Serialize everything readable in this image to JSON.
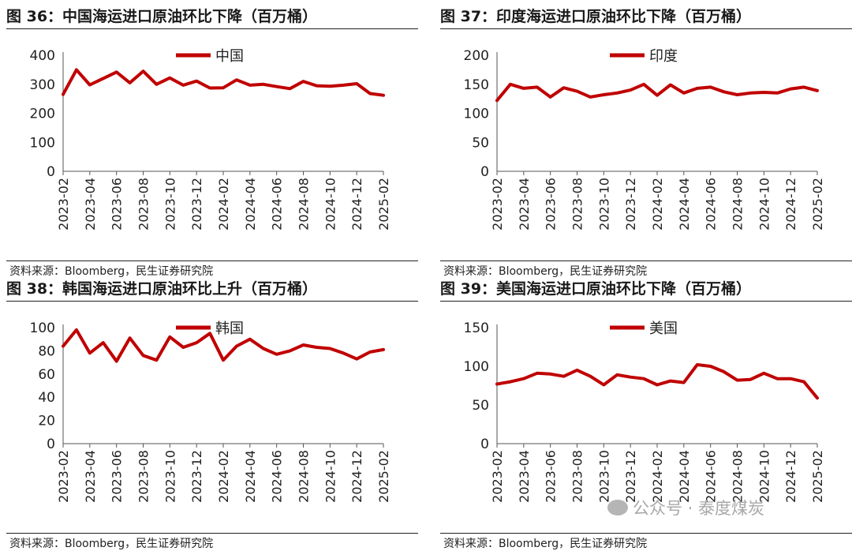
{
  "chart_data": [
    {
      "type": "line",
      "title": "图 36：中国海运进口原油环比下降（百万桶）",
      "source": "资料来源：Bloomberg，民生证券研究院",
      "categories": [
        "2023-02",
        "2023-03",
        "2023-04",
        "2023-05",
        "2023-06",
        "2023-07",
        "2023-08",
        "2023-09",
        "2023-10",
        "2023-11",
        "2023-12",
        "2024-01",
        "2024-02",
        "2024-03",
        "2024-04",
        "2024-05",
        "2024-06",
        "2024-07",
        "2024-08",
        "2024-09",
        "2024-10",
        "2024-11",
        "2024-12",
        "2025-01",
        "2025-02"
      ],
      "tick_labels": [
        "2023-02",
        "2023-04",
        "2023-06",
        "2023-08",
        "2023-10",
        "2023-12",
        "2024-02",
        "2024-04",
        "2024-06",
        "2024-08",
        "2024-10",
        "2024-12",
        "2025-02"
      ],
      "series": [
        {
          "name": "中国",
          "values": [
            265,
            350,
            298,
            320,
            342,
            305,
            345,
            300,
            322,
            297,
            311,
            287,
            288,
            315,
            297,
            300,
            292,
            285,
            310,
            295,
            293,
            297,
            302,
            268,
            262
          ]
        }
      ],
      "ylim": [
        0,
        400
      ],
      "yticks": [
        0,
        100,
        200,
        300,
        400
      ],
      "legend_position": "top-center",
      "color": "#c00000"
    },
    {
      "type": "line",
      "title": "图 37：印度海运进口原油环比下降（百万桶）",
      "source": "资料来源：Bloomberg，民生证券研究院",
      "categories": [
        "2023-02",
        "2023-03",
        "2023-04",
        "2023-05",
        "2023-06",
        "2023-07",
        "2023-08",
        "2023-09",
        "2023-10",
        "2023-11",
        "2023-12",
        "2024-01",
        "2024-02",
        "2024-03",
        "2024-04",
        "2024-05",
        "2024-06",
        "2024-07",
        "2024-08",
        "2024-09",
        "2024-10",
        "2024-11",
        "2024-12",
        "2025-01",
        "2025-02"
      ],
      "tick_labels": [
        "2023-02",
        "2023-04",
        "2023-06",
        "2023-08",
        "2023-10",
        "2023-12",
        "2024-02",
        "2024-04",
        "2024-06",
        "2024-08",
        "2024-10",
        "2024-12",
        "2025-02"
      ],
      "series": [
        {
          "name": "印度",
          "values": [
            122,
            150,
            143,
            145,
            128,
            144,
            138,
            128,
            132,
            135,
            140,
            150,
            131,
            149,
            135,
            143,
            145,
            137,
            132,
            135,
            136,
            135,
            142,
            145,
            139
          ]
        }
      ],
      "ylim": [
        0,
        200
      ],
      "yticks": [
        0,
        50,
        100,
        150,
        200
      ],
      "legend_position": "top-center",
      "color": "#c00000"
    },
    {
      "type": "line",
      "title": "图 38：韩国海运进口原油环比上升（百万桶）",
      "source": "资料来源：Bloomberg，民生证券研究院",
      "categories": [
        "2023-02",
        "2023-03",
        "2023-04",
        "2023-05",
        "2023-06",
        "2023-07",
        "2023-08",
        "2023-09",
        "2023-10",
        "2023-11",
        "2023-12",
        "2024-01",
        "2024-02",
        "2024-03",
        "2024-04",
        "2024-05",
        "2024-06",
        "2024-07",
        "2024-08",
        "2024-09",
        "2024-10",
        "2024-11",
        "2024-12",
        "2025-01",
        "2025-02"
      ],
      "tick_labels": [
        "2023-02",
        "2023-04",
        "2023-06",
        "2023-08",
        "2023-10",
        "2023-12",
        "2024-02",
        "2024-04",
        "2024-06",
        "2024-08",
        "2024-10",
        "2024-12",
        "2025-02"
      ],
      "series": [
        {
          "name": "韩国",
          "values": [
            84,
            98,
            78,
            87,
            71,
            91,
            76,
            72,
            92,
            83,
            87,
            95,
            72,
            84,
            90,
            82,
            77,
            80,
            85,
            83,
            82,
            78,
            73,
            79,
            81
          ]
        }
      ],
      "ylim": [
        0,
        100
      ],
      "yticks": [
        0,
        20,
        40,
        60,
        80,
        100
      ],
      "legend_position": "top-center",
      "color": "#c00000"
    },
    {
      "type": "line",
      "title": "图 39：美国海运进口原油环比下降（百万桶）",
      "source": "资料来源：Bloomberg，民生证券研究院",
      "categories": [
        "2023-02",
        "2023-03",
        "2023-04",
        "2023-05",
        "2023-06",
        "2023-07",
        "2023-08",
        "2023-09",
        "2023-10",
        "2023-11",
        "2023-12",
        "2024-01",
        "2024-02",
        "2024-03",
        "2024-04",
        "2024-05",
        "2024-06",
        "2024-07",
        "2024-08",
        "2024-09",
        "2024-10",
        "2024-11",
        "2024-12",
        "2025-01",
        "2025-02"
      ],
      "tick_labels": [
        "2023-02",
        "2023-04",
        "2023-06",
        "2023-08",
        "2023-10",
        "2023-12",
        "2024-02",
        "2024-04",
        "2024-06",
        "2024-08",
        "2024-10",
        "2024-12",
        "2025-02"
      ],
      "series": [
        {
          "name": "美国",
          "values": [
            77,
            80,
            84,
            91,
            90,
            87,
            95,
            87,
            76,
            89,
            86,
            84,
            76,
            81,
            79,
            102,
            100,
            93,
            82,
            83,
            91,
            84,
            84,
            80,
            59
          ]
        }
      ],
      "ylim": [
        0,
        150
      ],
      "yticks": [
        0,
        50,
        100,
        150
      ],
      "legend_position": "top-center",
      "color": "#c00000"
    }
  ],
  "watermark": "公众号 · 泰度煤炭"
}
